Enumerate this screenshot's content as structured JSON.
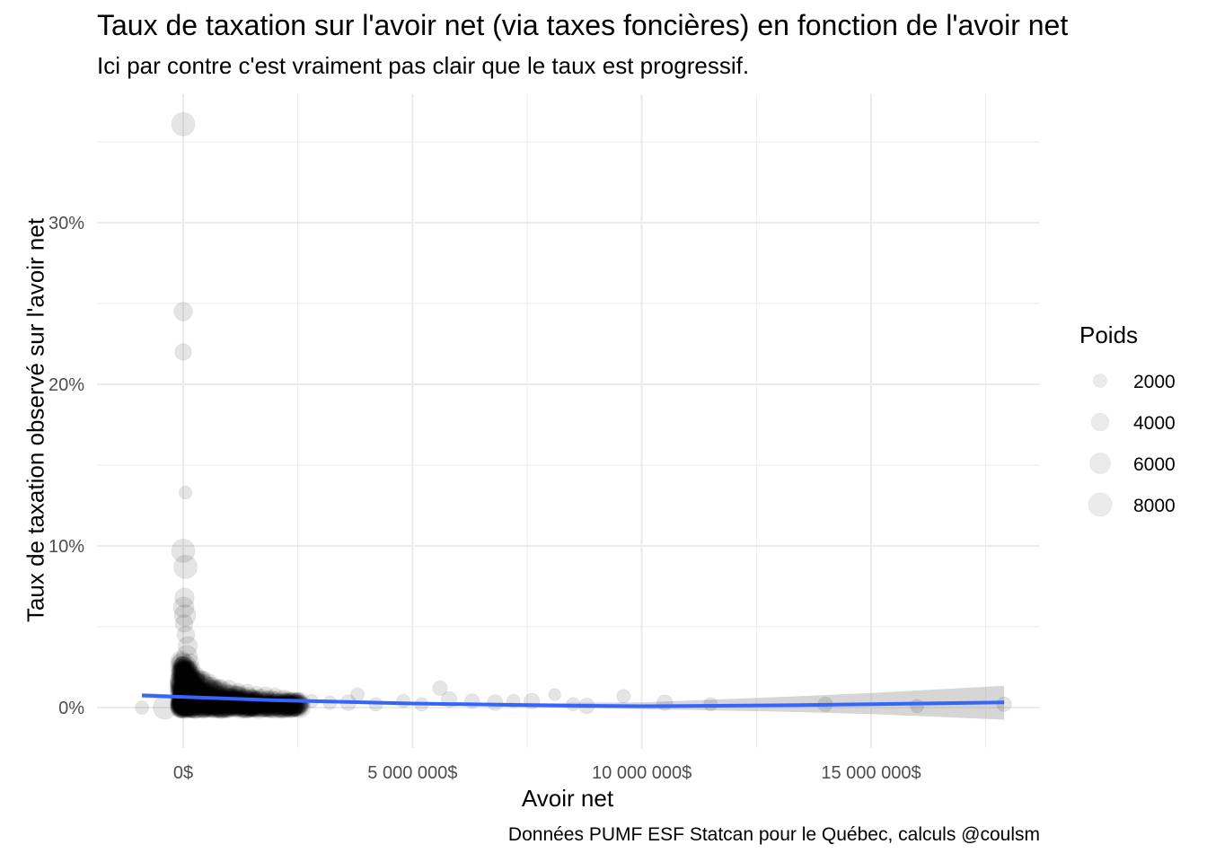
{
  "chart_data": {
    "type": "scatter",
    "title": "Taux de taxation sur l'avoir net (via taxes foncières) en fonction de l'avoir net",
    "subtitle": "Ici par contre c'est vraiment pas clair que le taux est progressif.",
    "xlabel": "Avoir net",
    "ylabel": "Taux de taxation observé sur l'avoir net",
    "caption": "Données PUMF ESF Statcan pour le Québec, calculs @coulsm",
    "xlim": [
      -1900000,
      18500000
    ],
    "ylim": [
      -0.025,
      0.37
    ],
    "x_ticks": [
      {
        "value": 0,
        "label": "0$"
      },
      {
        "value": 5000000,
        "label": "5 000 000$"
      },
      {
        "value": 10000000,
        "label": "10 000 000$"
      },
      {
        "value": 15000000,
        "label": "15 000 000$"
      }
    ],
    "y_ticks": [
      {
        "value": 0,
        "label": "0%"
      },
      {
        "value": 0.1,
        "label": "10%"
      },
      {
        "value": 0.2,
        "label": "20%"
      },
      {
        "value": 0.3,
        "label": "30%"
      }
    ],
    "grid": true,
    "legend": {
      "title": "Poids",
      "placement": "right",
      "entries": [
        {
          "label": "2000",
          "weight": 2000
        },
        {
          "label": "4000",
          "weight": 4000
        },
        {
          "label": "6000",
          "weight": 6000
        },
        {
          "label": "8000",
          "weight": 8000
        }
      ]
    },
    "colors": {
      "points": "#000000",
      "trend": "#3366ff",
      "ribbon": "#999999",
      "grid": "#ebebeb"
    },
    "points": [
      {
        "x": 0,
        "y": 0.361,
        "w": 8000
      },
      {
        "x": 0,
        "y": 0.245,
        "w": 4500
      },
      {
        "x": 0,
        "y": 0.22,
        "w": 3500
      },
      {
        "x": 50000,
        "y": 0.133,
        "w": 1800
      },
      {
        "x": 0,
        "y": 0.097,
        "w": 8000
      },
      {
        "x": 50000,
        "y": 0.087,
        "w": 8000
      },
      {
        "x": 30000,
        "y": 0.068,
        "w": 5000
      },
      {
        "x": 10000,
        "y": 0.062,
        "w": 6000
      },
      {
        "x": 40000,
        "y": 0.057,
        "w": 6500
      },
      {
        "x": 20000,
        "y": 0.052,
        "w": 4000
      },
      {
        "x": 60000,
        "y": 0.045,
        "w": 4000
      },
      {
        "x": 100000,
        "y": 0.038,
        "w": 5000
      },
      {
        "x": 80000,
        "y": 0.032,
        "w": 6000
      },
      {
        "x": 150000,
        "y": 0.028,
        "w": 4000
      },
      {
        "x": 200000,
        "y": 0.024,
        "w": 3000
      },
      {
        "x": 300000,
        "y": 0.02,
        "w": 3000
      },
      {
        "x": 400000,
        "y": 0.017,
        "w": 4000
      },
      {
        "x": 600000,
        "y": 0.014,
        "w": 3000
      },
      {
        "x": 800000,
        "y": 0.013,
        "w": 2500
      },
      {
        "x": 1000000,
        "y": 0.012,
        "w": 3000
      },
      {
        "x": 1200000,
        "y": 0.011,
        "w": 2000
      },
      {
        "x": 1400000,
        "y": 0.01,
        "w": 2500
      },
      {
        "x": 1600000,
        "y": 0.009,
        "w": 2000
      },
      {
        "x": 1800000,
        "y": 0.008,
        "w": 3000
      },
      {
        "x": 2000000,
        "y": 0.008,
        "w": 2000
      },
      {
        "x": 2200000,
        "y": 0.006,
        "w": 3000
      },
      {
        "x": 2500000,
        "y": 0.005,
        "w": 2000
      },
      {
        "x": 2800000,
        "y": 0.004,
        "w": 2000
      },
      {
        "x": 3200000,
        "y": 0.003,
        "w": 2000
      },
      {
        "x": 3600000,
        "y": 0.003,
        "w": 3000
      },
      {
        "x": 3800000,
        "y": 0.008,
        "w": 2000
      },
      {
        "x": 4200000,
        "y": 0.002,
        "w": 2000
      },
      {
        "x": 4800000,
        "y": 0.004,
        "w": 2000
      },
      {
        "x": 5200000,
        "y": 0.002,
        "w": 2000
      },
      {
        "x": 5600000,
        "y": 0.012,
        "w": 2500
      },
      {
        "x": 5800000,
        "y": 0.005,
        "w": 3000
      },
      {
        "x": 6300000,
        "y": 0.004,
        "w": 2500
      },
      {
        "x": 6800000,
        "y": 0.003,
        "w": 3000
      },
      {
        "x": 7200000,
        "y": 0.004,
        "w": 2000
      },
      {
        "x": 7600000,
        "y": 0.004,
        "w": 3000
      },
      {
        "x": 8100000,
        "y": 0.008,
        "w": 1500
      },
      {
        "x": 8500000,
        "y": 0.002,
        "w": 2000
      },
      {
        "x": 8800000,
        "y": 0.001,
        "w": 3000
      },
      {
        "x": 9600000,
        "y": 0.007,
        "w": 2000
      },
      {
        "x": 10500000,
        "y": 0.003,
        "w": 3000
      },
      {
        "x": 11500000,
        "y": 0.002,
        "w": 2000
      },
      {
        "x": 14000000,
        "y": 0.002,
        "w": 2500
      },
      {
        "x": 16000000,
        "y": 0.001,
        "w": 2000
      },
      {
        "x": 17900000,
        "y": 0.002,
        "w": 2500
      },
      {
        "x": -900000,
        "y": 0.0,
        "w": 2000
      },
      {
        "x": -400000,
        "y": 0.0,
        "w": 8000
      }
    ],
    "trend": {
      "x": [
        -900000,
        2000000,
        5000000,
        8000000,
        10000000,
        13000000,
        15000000,
        17900000
      ],
      "y": [
        0.0075,
        0.0045,
        0.0025,
        0.0013,
        0.0008,
        0.0014,
        0.0021,
        0.0032
      ],
      "ymin": [
        0.006,
        0.004,
        0.0018,
        0.0,
        -0.001,
        -0.0025,
        -0.004,
        -0.0075
      ],
      "ymax": [
        0.009,
        0.005,
        0.0032,
        0.0028,
        0.0032,
        0.0065,
        0.009,
        0.0135
      ]
    }
  }
}
